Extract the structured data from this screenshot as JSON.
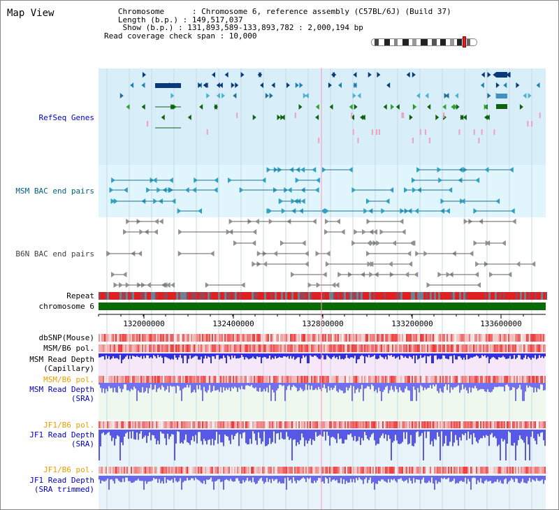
{
  "header": {
    "title": "Map View"
  },
  "info": {
    "line1": "   Chromosome      : Chromosome 6, reference assembly (C57BL/6J) (Build 37)",
    "line2": "   Length (b.p.) : 149,517,037",
    "line3": "    Show (b.p.) : 131,893,589-133,893,782 : 2,000,194 bp",
    "line4": "Read coverage check span : 10,000"
  },
  "tracks": {
    "refseq": "RefSeq Genes",
    "msm_bac": "MSM BAC end pairs",
    "b6n_bac": "B6N BAC end pairs",
    "repeat": "Repeat",
    "chromosome": "chromosome 6",
    "dbsnp": "dbSNP(Mouse)",
    "msm_pol": "MSM/B6 pol.",
    "msm_depth_cap_1": "MSM Read Depth",
    "msm_depth_cap_2": "(Capillary)",
    "msm_pol2": "MSM/B6 pol.",
    "msm_depth_sra_1": "MSM Read Depth",
    "msm_depth_sra_2": "(SRA)",
    "jf1_pol": "JF1/B6 pol.",
    "jf1_depth_sra_1": "JF1 Read Depth",
    "jf1_depth_sra_2": "(SRA)",
    "jf1_pol2": "JF1/B6 pol.",
    "jf1_depth_trim_1": "JF1 Read Depth",
    "jf1_depth_trim_2": "(SRA trimmed)"
  },
  "axis": {
    "ticks": [
      "132000000",
      "132400000",
      "132800000",
      "133200000",
      "133600000"
    ]
  },
  "colors": {
    "label_blue": "#0000c0",
    "label_teal": "#006080",
    "label_gray": "#404040",
    "label_orange": "#e8a000",
    "refseq_bg": "#d8eef8",
    "msm_bg": "#e0f6fc",
    "chromosome_green": "#0a6a0a",
    "depth_blue": "#3838e8",
    "pol_red": "#e02020"
  }
}
